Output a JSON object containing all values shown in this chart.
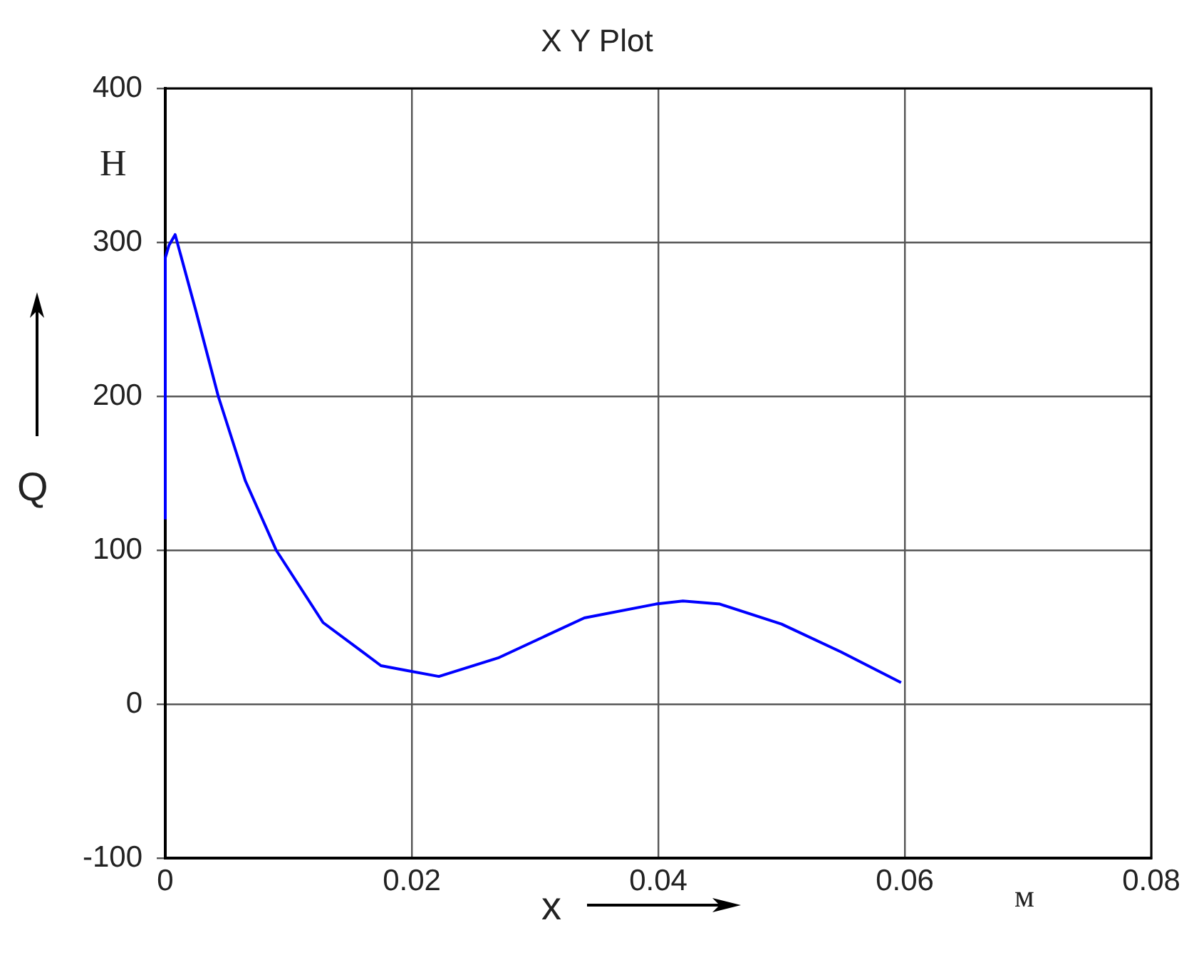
{
  "chart_data": {
    "type": "line",
    "title": "X Y Plot",
    "xlabel": "x",
    "ylabel": "Q",
    "annotations": [
      "Н",
      "м"
    ],
    "xlim": [
      0,
      0.08
    ],
    "xticks": [
      0,
      0.02,
      0.04,
      0.06,
      0.08
    ],
    "ylim": [
      -100,
      400
    ],
    "yticks": [
      -100,
      0,
      100,
      200,
      300,
      400
    ],
    "grid": true,
    "legend": false,
    "marker": "none",
    "line_style": "solid",
    "series": [
      {
        "color": "#0000ff",
        "x": [
          0,
          0,
          0.0003,
          0.0008,
          0.0025,
          0.0043,
          0.0065,
          0.009,
          0.0128,
          0.0175,
          0.0195,
          0.0222,
          0.027,
          0.034,
          0.0398,
          0.042,
          0.045,
          0.05,
          0.0548,
          0.0597
        ],
        "values": [
          120,
          290,
          298,
          305,
          255,
          200,
          145,
          100,
          53,
          25,
          22,
          18,
          30,
          56,
          65,
          67,
          65,
          52,
          34,
          14
        ]
      }
    ]
  }
}
